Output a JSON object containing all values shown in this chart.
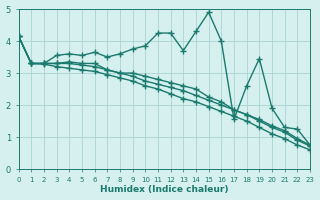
{
  "xlabel": "Humidex (Indice chaleur)",
  "bg_color": "#d6f0ef",
  "grid_color": "#b0d8d6",
  "line_color": "#1a7a6e",
  "xlim": [
    0,
    23
  ],
  "ylim": [
    0,
    5
  ],
  "xticks": [
    0,
    1,
    2,
    3,
    4,
    5,
    6,
    7,
    8,
    9,
    10,
    11,
    12,
    13,
    14,
    15,
    16,
    17,
    18,
    19,
    20,
    21,
    22,
    23
  ],
  "yticks": [
    0,
    1,
    2,
    3,
    4,
    5
  ],
  "series1_x": [
    0,
    1,
    2,
    3,
    4,
    5,
    6,
    7,
    8,
    9,
    10,
    11,
    12,
    13,
    14,
    15,
    16,
    17,
    18,
    19,
    20,
    21,
    22,
    23
  ],
  "series1_y": [
    4.15,
    3.3,
    3.3,
    3.55,
    3.6,
    3.55,
    3.65,
    3.5,
    3.6,
    3.75,
    3.85,
    4.25,
    4.25,
    3.7,
    4.3,
    4.9,
    4.0,
    1.55,
    2.6,
    3.45,
    1.9,
    1.3,
    1.25,
    0.75
  ],
  "series2_x": [
    0,
    1,
    2,
    3,
    4,
    5,
    6,
    7,
    8,
    9,
    10,
    11,
    12,
    13,
    14,
    15,
    16,
    17,
    18,
    19,
    20,
    21,
    22,
    23
  ],
  "series2_y": [
    4.15,
    3.3,
    3.3,
    3.3,
    3.35,
    3.3,
    3.3,
    3.1,
    3.0,
    3.0,
    2.9,
    2.8,
    2.7,
    2.6,
    2.5,
    2.25,
    2.1,
    1.85,
    1.7,
    1.55,
    1.35,
    1.2,
    0.95,
    0.75
  ],
  "series3_x": [
    0,
    1,
    2,
    3,
    4,
    5,
    6,
    7,
    8,
    9,
    10,
    11,
    12,
    13,
    14,
    15,
    16,
    17,
    18,
    19,
    20,
    21,
    22,
    23
  ],
  "series3_y": [
    4.15,
    3.3,
    3.3,
    3.3,
    3.3,
    3.25,
    3.2,
    3.1,
    3.0,
    2.9,
    2.75,
    2.65,
    2.55,
    2.45,
    2.3,
    2.15,
    2.0,
    1.85,
    1.7,
    1.5,
    1.3,
    1.15,
    0.9,
    0.72
  ],
  "series4_x": [
    0,
    1,
    2,
    3,
    4,
    5,
    6,
    7,
    8,
    9,
    10,
    11,
    12,
    13,
    14,
    15,
    16,
    17,
    18,
    19,
    20,
    21,
    22,
    23
  ],
  "series4_y": [
    4.15,
    3.3,
    3.28,
    3.2,
    3.15,
    3.1,
    3.05,
    2.95,
    2.85,
    2.75,
    2.6,
    2.5,
    2.35,
    2.2,
    2.1,
    1.95,
    1.8,
    1.65,
    1.5,
    1.3,
    1.1,
    0.95,
    0.75,
    0.6
  ],
  "font_color": "#1a7a6e",
  "marker": "+"
}
